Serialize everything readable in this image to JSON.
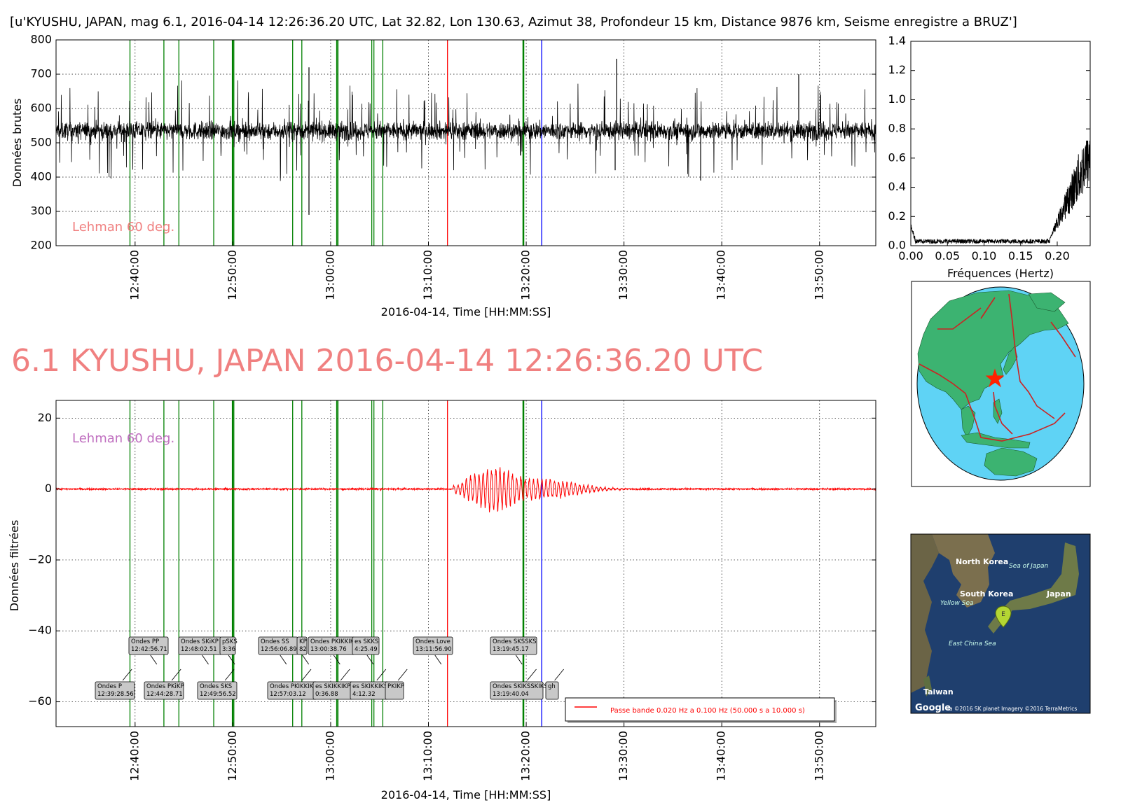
{
  "header": {
    "text": "[u'KYUSHU, JAPAN, mag 6.1, 2016-04-14 12:26:36.20 UTC, Lat 32.82, Lon 130.63, Azimut  38, Profondeur 15 km, Distance  9876 km, Seisme enregistre a BRUZ']"
  },
  "big_title": "6.1 KYUSHU, JAPAN 2016-04-14 12:26:36.20 UTC",
  "colors": {
    "raw_trace": "#000000",
    "filtered_trace": "#ff0000",
    "phase_line": "#008000",
    "red_marker": "#ff0000",
    "blue_marker": "#0000ff",
    "lehman_top": "#f08080",
    "lehman_bottom": "#c070c0",
    "big_title": "#f08080",
    "ocean": "#5fd3f5",
    "land": "#3cb371",
    "plate_boundary": "#cc2222"
  },
  "markers": {
    "phase_lines": [
      "12:39:28.56",
      "12:42:56.71",
      "12:44:28.71",
      "12:48:02.51",
      "12:49:56.52",
      "12:50:00",
      "12:50:06",
      "12:56:06.89",
      "12:57:03.12",
      "13:00:36.88",
      "13:00:38.76",
      "13:00:45",
      "13:04:12.32",
      "13:04:25.49",
      "13:05:20",
      "13:19:40.04",
      "13:19:45.17"
    ],
    "red_line": "13:11:56.90",
    "blue_line": "13:21:35"
  },
  "chart_data": [
    {
      "id": "raw",
      "type": "line",
      "ylabel": "Données brutes",
      "xlabel": "2016-04-14, Time [HH:MM:SS]",
      "ylim": [
        200,
        800
      ],
      "yticks": [
        "800",
        "700",
        "600",
        "500",
        "400",
        "300",
        "200"
      ],
      "xticks": [
        "12:40:00",
        "12:50:00",
        "13:00:00",
        "13:10:00",
        "13:20:00",
        "13:30:00",
        "13:40:00",
        "13:50:00"
      ],
      "x_range": [
        "12:31:55",
        "13:55:45"
      ],
      "grid": true,
      "annotation": "Lehman 60 deg.",
      "series": [
        {
          "baseline": 535,
          "noise_amplitude": 45,
          "spike_max": 745,
          "spike_min": 290
        }
      ]
    },
    {
      "id": "spectrum",
      "type": "line",
      "xlabel": "Fréquences (Hertz)",
      "ylim": [
        0,
        1.4
      ],
      "xlim": [
        0,
        0.245
      ],
      "yticks": [
        "1.4",
        "1.2",
        "1.0",
        "0.8",
        "0.6",
        "0.4",
        "0.2",
        "0.0"
      ],
      "xticks": [
        "0.00",
        "0.05",
        "0.10",
        "0.15",
        "0.20"
      ],
      "grid": false,
      "series": [
        {
          "low_level": 0.03,
          "rise_start": 0.19,
          "peak": 0.72
        }
      ]
    },
    {
      "id": "filtered",
      "type": "line",
      "ylabel": "Données filtrées",
      "xlabel": "2016-04-14, Time [HH:MM:SS]",
      "ylim": [
        -67,
        25
      ],
      "yticks": [
        "20",
        "0",
        "−20",
        "−40",
        "−60"
      ],
      "xticks": [
        "12:40:00",
        "12:50:00",
        "13:00:00",
        "13:10:00",
        "13:20:00",
        "13:30:00",
        "13:40:00",
        "13:50:00"
      ],
      "x_range": [
        "12:31:55",
        "13:55:45"
      ],
      "grid": true,
      "annotation": "Lehman 60 deg.",
      "legend": {
        "label": "Passe bande 0.020 Hz a 0.100 Hz (50.000 s a 10.000 s)",
        "position": "bottom-right"
      },
      "series": [
        {
          "name": "Passe bande 0.020 Hz a 0.100 Hz (50.000 s a 10.000 s)",
          "noise_amplitude": 0.4,
          "wave_peak": 5.5,
          "wave_start": "13:12:30",
          "wave_end": "13:30:00"
        }
      ],
      "phase_boxes_upper": [
        {
          "lines": [
            "Ondes PP",
            "12:42:56.71"
          ]
        },
        {
          "lines": [
            "Ondes SKiKP",
            "12:48:02.51"
          ]
        },
        {
          "lines": [
            "pSKS",
            "3:36"
          ]
        },
        {
          "lines": [
            "Ondes SS",
            "12:56:06.89"
          ]
        },
        {
          "lines": [
            "KP",
            "82"
          ]
        },
        {
          "lines": [
            "Ondes PKIKKIKS",
            "13:00:38.76"
          ]
        },
        {
          "lines": [
            "es SKKS",
            "4:25.49"
          ]
        },
        {
          "lines": [
            "Ondes Love",
            "13:11:56.90"
          ]
        },
        {
          "lines": [
            "Ondes SKSSKS",
            "13:19:45.17"
          ]
        }
      ],
      "phase_boxes_lower": [
        {
          "lines": [
            "Ondes P",
            "12:39:28.56"
          ]
        },
        {
          "lines": [
            "Ondes PKiKP",
            "12:44:28.71"
          ]
        },
        {
          "lines": [
            "Ondes SKS",
            "12:49:56.52"
          ]
        },
        {
          "lines": [
            "Ondes PKIKKIKP",
            "12:57:03.12"
          ]
        },
        {
          "lines": [
            "es SKIKKIKP",
            "0:36.88"
          ]
        },
        {
          "lines": [
            "es SKIKKIKS",
            "4:12.32"
          ]
        },
        {
          "lines": [
            "PKIKP",
            ""
          ]
        },
        {
          "lines": [
            "Ondes SKIKSSKIKS",
            "13:19:40.04"
          ]
        },
        {
          "lines": [
            "gh",
            ""
          ]
        }
      ]
    }
  ],
  "globe_map": {
    "epicenter": "star"
  },
  "regional_map": {
    "labels": [
      "North Korea",
      "Sea of Japan",
      "South Korea",
      "Japan",
      "Yellow Sea",
      "East China Sea",
      "Taiwan"
    ],
    "pin_label": "E",
    "attribution": "Google",
    "attribution_small": "ta ©2016 SK planet  Imagery ©2016 TerraMetrics"
  }
}
